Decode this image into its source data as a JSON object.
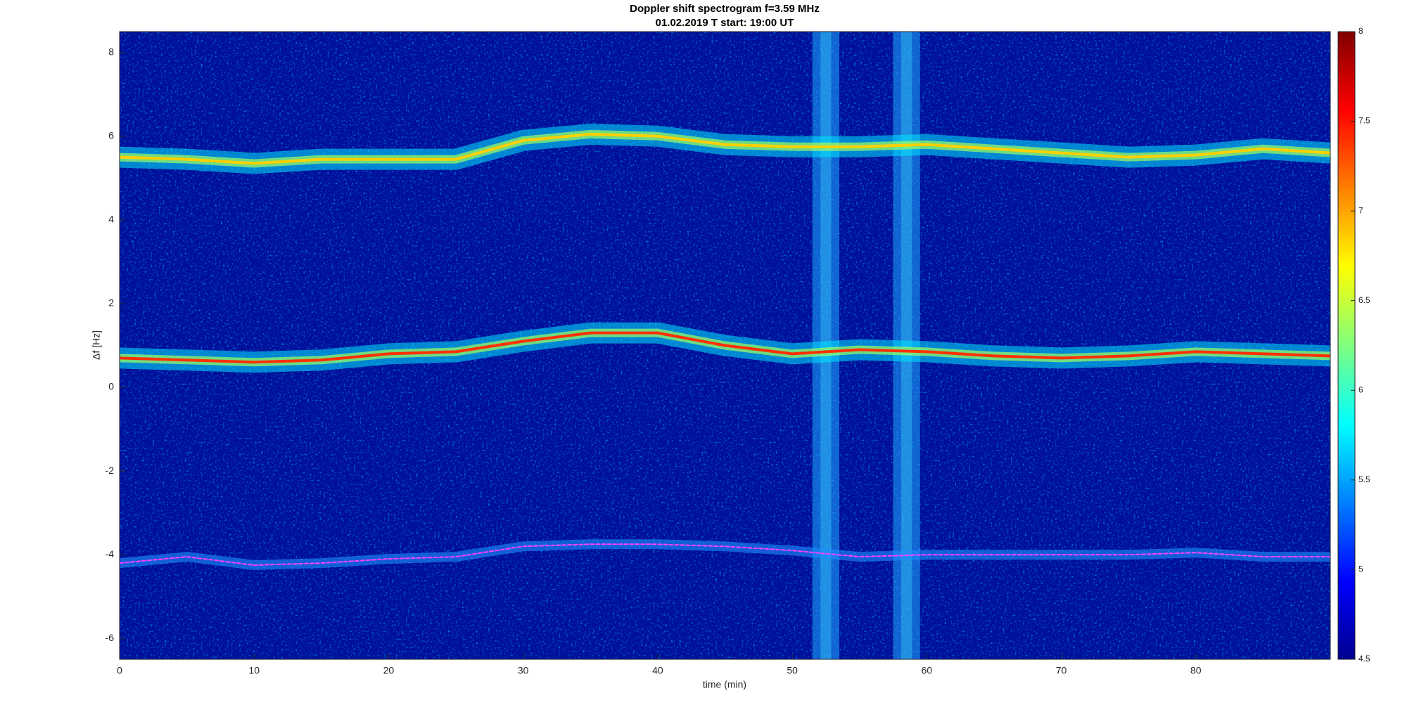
{
  "chart_data": {
    "type": "spectrogram",
    "title": "Doppler shift spectrogram f=3.59 MHz",
    "subtitle": "01.02.2019   T start: 19:00 UT",
    "x_label": "time (min)",
    "y_label": "Δf [Hz]",
    "xlim": [
      0,
      90
    ],
    "xticks": [
      0,
      10,
      20,
      30,
      40,
      50,
      60,
      70,
      80
    ],
    "ylim": [
      -6.5,
      8.5
    ],
    "yticks": [
      -6,
      -4,
      -2,
      0,
      2,
      4,
      6,
      8
    ],
    "x": [
      0,
      5,
      10,
      15,
      20,
      25,
      30,
      35,
      40,
      45,
      50,
      55,
      60,
      65,
      70,
      75,
      80,
      85,
      90
    ],
    "series": [
      {
        "color": "#ffd000",
        "values": [
          5.5,
          5.45,
          5.35,
          5.45,
          5.45,
          5.45,
          5.9,
          6.05,
          6.0,
          5.8,
          5.75,
          5.75,
          5.8,
          5.7,
          5.6,
          5.5,
          5.55,
          5.7,
          5.6
        ]
      },
      {
        "color": "#ff3000",
        "values": [
          0.7,
          0.65,
          0.6,
          0.65,
          0.8,
          0.85,
          1.1,
          1.3,
          1.3,
          1.0,
          0.8,
          0.9,
          0.85,
          0.75,
          0.7,
          0.75,
          0.85,
          0.8,
          0.75
        ]
      },
      {
        "color": "#ff40ff",
        "values": [
          -4.2,
          -4.05,
          -4.25,
          -4.2,
          -4.1,
          -4.05,
          -3.8,
          -3.75,
          -3.75,
          -3.8,
          -3.9,
          -4.05,
          -4.0,
          -4.0,
          -4.0,
          -4.0,
          -3.95,
          -4.05,
          -4.05
        ]
      }
    ],
    "interference": [
      [
        51.5,
        53.5
      ],
      [
        57.5,
        59.5
      ]
    ],
    "clim": [
      4.5,
      8
    ],
    "cticks": [
      4.5,
      5,
      5.5,
      6,
      6.5,
      7,
      7.5,
      8
    ]
  }
}
